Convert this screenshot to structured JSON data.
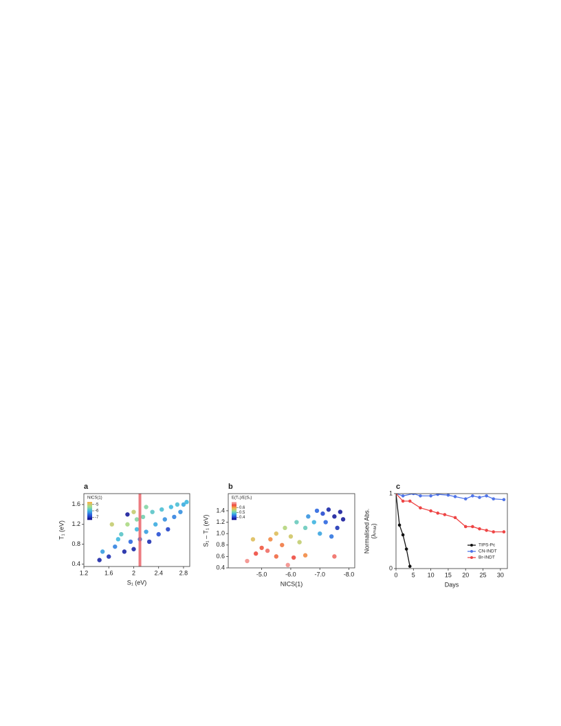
{
  "chart_data": [
    {
      "type": "scatter",
      "panel": "a",
      "x_label": "S₁ (eV)",
      "y_label": "T₁ (eV)",
      "xlim": [
        1.2,
        2.9
      ],
      "ylim": [
        0.35,
        1.82
      ],
      "xticks": [
        1.2,
        1.6,
        2.0,
        2.4,
        2.8
      ],
      "yticks": [
        0.4,
        0.8,
        1.2,
        1.6
      ],
      "colorbar_title": "NICS(1)",
      "clim": [
        -7.4,
        -4.6
      ],
      "cticks": [
        -5,
        -6,
        -7
      ],
      "colormap": [
        "#14128f",
        "#2b5be0",
        "#3fb9e0",
        "#9fe08c",
        "#f5b24a"
      ],
      "highlight_x": 2.1,
      "highlight_color": "#e85a60",
      "x": [
        1.45,
        1.5,
        1.6,
        1.7,
        1.75,
        1.8,
        1.85,
        1.9,
        1.9,
        1.95,
        2.0,
        2.0,
        2.05,
        2.1,
        2.15,
        2.2,
        2.25,
        2.3,
        2.35,
        2.4,
        2.45,
        2.5,
        2.55,
        2.6,
        2.65,
        2.7,
        2.75,
        2.8,
        2.85,
        2.2,
        1.65,
        2.05
      ],
      "y": [
        0.48,
        0.65,
        0.55,
        0.75,
        0.9,
        1.0,
        0.65,
        1.4,
        1.2,
        0.85,
        1.45,
        0.7,
        1.1,
        0.9,
        1.35,
        1.05,
        0.85,
        1.45,
        1.2,
        1.0,
        1.5,
        1.3,
        1.1,
        1.55,
        1.35,
        1.6,
        1.45,
        1.6,
        1.65,
        1.55,
        1.2,
        1.3
      ],
      "c": [
        -7.2,
        -6.2,
        -7.1,
        -6.4,
        -6.0,
        -5.8,
        -7.2,
        -7.3,
        -5.2,
        -6.6,
        -5.0,
        -7.2,
        -6.0,
        -6.5,
        -5.6,
        -6.2,
        -7.1,
        -5.8,
        -6.1,
        -6.8,
        -5.9,
        -6.3,
        -6.9,
        -6.0,
        -6.4,
        -5.9,
        -6.3,
        -6.1,
        -6.0,
        -5.5,
        -5.0,
        -5.5
      ]
    },
    {
      "type": "scatter",
      "panel": "b",
      "x_label": "NICS(1)",
      "y_label": "S₁ – T₁ (eV)",
      "xlim": [
        -3.85,
        -8.2
      ],
      "ylim": [
        0.4,
        1.7
      ],
      "xticks": [
        {
          "value": -5,
          "label": "-5.0"
        },
        {
          "value": -6,
          "label": "-6.0"
        },
        {
          "value": -7,
          "label": "-7.0"
        },
        {
          "value": -8,
          "label": "-8.0"
        }
      ],
      "yticks": [
        0.4,
        0.6,
        0.8,
        {
          "value": 1,
          "label": "1.0"
        },
        1.2,
        1.4
      ],
      "colorbar_title": "E(T₁)/E(S₁)",
      "clim": [
        0.35,
        0.72
      ],
      "cticks": [
        0.6,
        0.5,
        0.4
      ],
      "colormap": [
        "#14128f",
        "#2b5be0",
        "#3fb9e0",
        "#9fe08c",
        "#f5b24a",
        "#ee4a3e",
        "#f5b0b0"
      ],
      "x": [
        -4.5,
        -4.8,
        -5.0,
        -5.2,
        -5.3,
        -5.5,
        -5.5,
        -5.7,
        -5.8,
        -6.0,
        -6.1,
        -6.2,
        -6.3,
        -6.5,
        -6.6,
        -6.8,
        -6.9,
        -7.0,
        -7.1,
        -7.2,
        -7.3,
        -7.4,
        -7.5,
        -7.6,
        -7.7,
        -7.5,
        -7.8,
        -5.9,
        -6.5,
        -4.7
      ],
      "y": [
        0.52,
        0.65,
        0.75,
        0.7,
        0.9,
        0.6,
        1.0,
        0.8,
        1.1,
        0.95,
        0.58,
        1.2,
        0.85,
        1.1,
        1.3,
        1.2,
        1.4,
        1.0,
        1.35,
        1.2,
        1.42,
        0.95,
        1.3,
        1.1,
        1.38,
        0.6,
        1.25,
        0.45,
        0.62,
        0.9
      ],
      "c": [
        0.7,
        0.66,
        0.65,
        0.68,
        0.62,
        0.64,
        0.58,
        0.63,
        0.55,
        0.57,
        0.66,
        0.5,
        0.56,
        0.5,
        0.45,
        0.47,
        0.42,
        0.46,
        0.4,
        0.42,
        0.37,
        0.43,
        0.36,
        0.38,
        0.36,
        0.68,
        0.36,
        0.7,
        0.62,
        0.58
      ]
    },
    {
      "type": "line",
      "panel": "c",
      "x_label": "Days",
      "y_label": "Normalised Abs.",
      "y_label2": "(λₘₐₓ)",
      "xlim": [
        0,
        32
      ],
      "ylim": [
        0,
        1
      ],
      "xticks": [
        0,
        5,
        10,
        15,
        20,
        25,
        30
      ],
      "yticks": [
        0,
        1
      ],
      "legend": "lower right",
      "series": [
        {
          "name": "TIPS-Pc",
          "color": "#111111",
          "x": [
            0,
            1,
            2,
            3,
            4
          ],
          "values": [
            1,
            0.58,
            0.45,
            0.26,
            0.03
          ]
        },
        {
          "name": "CN-INDT",
          "color": "#4f74e8",
          "x": [
            0,
            2,
            5,
            7,
            10,
            12,
            15,
            17,
            20,
            22,
            24,
            26,
            28,
            31
          ],
          "values": [
            1,
            0.97,
            1.0,
            0.97,
            0.97,
            0.99,
            0.98,
            0.96,
            0.93,
            0.97,
            0.95,
            0.97,
            0.93,
            0.92
          ]
        },
        {
          "name": "Br-INDT",
          "color": "#ee4444",
          "x": [
            0,
            2,
            4,
            7,
            10,
            12,
            14,
            17,
            20,
            22,
            24,
            26,
            28,
            31
          ],
          "values": [
            1,
            0.9,
            0.9,
            0.81,
            0.77,
            0.74,
            0.72,
            0.68,
            0.56,
            0.56,
            0.53,
            0.51,
            0.49,
            0.49
          ]
        }
      ]
    }
  ]
}
